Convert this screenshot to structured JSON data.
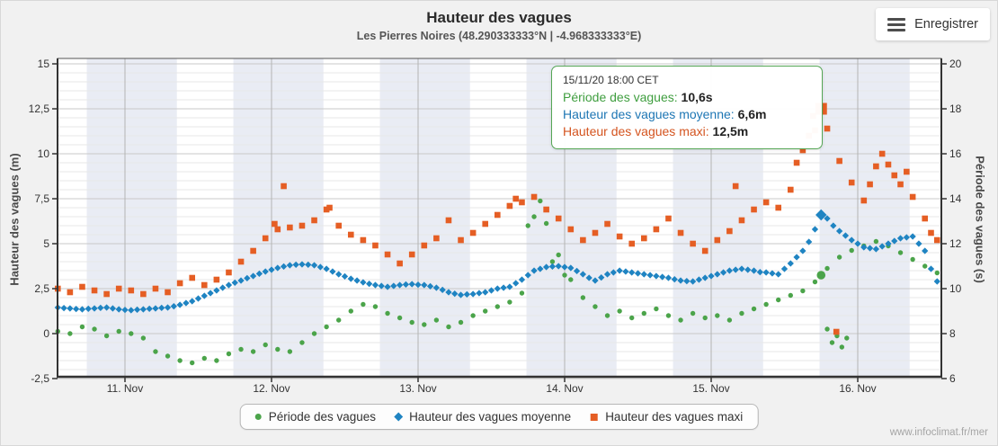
{
  "header": {
    "title": "Hauteur des vagues",
    "subtitle": "Les Pierres Noires (48.290333333°N | -4.968333333°E)",
    "export_button_label": "Enregistrer"
  },
  "watermark": "www.infoclimat.fr/mer",
  "tooltip": {
    "header": "15/11/20 18:00 CET",
    "rows": [
      {
        "label": "Période des vagues:",
        "value": "10,6s",
        "color": "#3f9e3f"
      },
      {
        "label": "Hauteur des vagues moyenne:",
        "value": "6,6m",
        "color": "#1d76b4"
      },
      {
        "label": "Hauteur des vagues maxi:",
        "value": "12,5m",
        "color": "#d4541f"
      }
    ]
  },
  "chart_data": {
    "type": "scatter",
    "title": "Hauteur des vagues",
    "x_unit": "hours since 2020-11-10 00:00 CET",
    "xlim": [
      13,
      158
    ],
    "x_ticks": [
      {
        "t": 24,
        "label": "11. Nov"
      },
      {
        "t": 48,
        "label": "12. Nov"
      },
      {
        "t": 72,
        "label": "13. Nov"
      },
      {
        "t": 96,
        "label": "14. Nov"
      },
      {
        "t": 120,
        "label": "15. Nov"
      },
      {
        "t": 144,
        "label": "16. Nov"
      }
    ],
    "left_axis": {
      "title": "Hauteur des vagues (m)",
      "lim": [
        -2.5,
        15
      ],
      "ticks": [
        {
          "v": 15,
          "label": "15"
        },
        {
          "v": 12.5,
          "label": "12,5"
        },
        {
          "v": 10,
          "label": "10"
        },
        {
          "v": 7.5,
          "label": "7,5"
        },
        {
          "v": 5,
          "label": "5"
        },
        {
          "v": 2.5,
          "label": "2,5"
        },
        {
          "v": 0,
          "label": "0"
        },
        {
          "v": -2.5,
          "label": "-2,5"
        }
      ],
      "minor_step": 0.5
    },
    "right_axis": {
      "title": "Période des vagues (s)",
      "lim": [
        6,
        20
      ],
      "ticks": [
        {
          "s": 20,
          "label": "20"
        },
        {
          "s": 18,
          "label": "18"
        },
        {
          "s": 16,
          "label": "16"
        },
        {
          "s": 14,
          "label": "14"
        },
        {
          "s": 12,
          "label": "12"
        },
        {
          "s": 10,
          "label": "10"
        },
        {
          "s": 8,
          "label": "8"
        },
        {
          "s": 6,
          "label": "6"
        }
      ]
    },
    "night_bands_t": [
      [
        17.75,
        32.5
      ],
      [
        41.75,
        56.5
      ],
      [
        65.75,
        80.5
      ],
      [
        89.75,
        104.5
      ],
      [
        113.75,
        128.5
      ],
      [
        137.75,
        152.5
      ]
    ],
    "band_color": "#e9ecf4",
    "series": [
      {
        "name": "Période des vagues",
        "axis": "right",
        "unit": "s",
        "marker": "circle",
        "color": "#4ba44a",
        "t0": 13,
        "dt": 2,
        "values": [
          8.1,
          8.0,
          8.3,
          8.2,
          7.9,
          8.1,
          8.0,
          7.8,
          7.2,
          7.0,
          6.8,
          6.7,
          6.9,
          6.8,
          7.1,
          7.3,
          7.2,
          7.5,
          7.3,
          7.2,
          7.6,
          8.0,
          8.3,
          8.6,
          9.0,
          9.3,
          9.2,
          8.9,
          8.7,
          8.5,
          8.4,
          8.6,
          8.3,
          8.5,
          8.8,
          9.0,
          9.2,
          9.4,
          9.8,
          13.2,
          12.9,
          11.5,
          10.4,
          9.6,
          9.2,
          8.8,
          9.0,
          8.7,
          8.9,
          9.1,
          8.8,
          8.6,
          8.9,
          8.7,
          8.8,
          8.6,
          8.9,
          9.1,
          9.3,
          9.5,
          9.7,
          9.9,
          10.3,
          10.9,
          11.4,
          11.7,
          11.9,
          12.1,
          11.9,
          11.6,
          11.3,
          11.0,
          10.7
        ],
        "extra_points": [
          [
            90,
            12.8
          ],
          [
            92,
            13.9
          ],
          [
            94,
            11.2
          ],
          [
            96,
            10.6
          ],
          [
            139,
            8.2
          ],
          [
            139.8,
            7.6
          ],
          [
            140.6,
            7.9
          ],
          [
            141.4,
            7.4
          ],
          [
            142.2,
            7.8
          ]
        ],
        "hover_point": [
          138,
          10.6
        ]
      },
      {
        "name": "Hauteur des vagues moyenne",
        "axis": "left",
        "unit": "m",
        "marker": "diamond",
        "color": "#1f84c2",
        "t0": 13,
        "dt": 1,
        "values": [
          1.45,
          1.42,
          1.4,
          1.37,
          1.35,
          1.38,
          1.4,
          1.43,
          1.45,
          1.4,
          1.35,
          1.32,
          1.3,
          1.33,
          1.35,
          1.38,
          1.4,
          1.43,
          1.45,
          1.52,
          1.6,
          1.7,
          1.8,
          1.95,
          2.1,
          2.25,
          2.4,
          2.55,
          2.7,
          2.83,
          2.95,
          3.08,
          3.2,
          3.33,
          3.45,
          3.55,
          3.65,
          3.73,
          3.8,
          3.83,
          3.85,
          3.83,
          3.8,
          3.7,
          3.6,
          3.45,
          3.3,
          3.18,
          3.05,
          2.95,
          2.85,
          2.77,
          2.7,
          2.65,
          2.6,
          2.65,
          2.7,
          2.73,
          2.75,
          2.72,
          2.7,
          2.63,
          2.55,
          2.43,
          2.3,
          2.22,
          2.15,
          2.18,
          2.2,
          2.25,
          2.3,
          2.4,
          2.5,
          2.55,
          2.6,
          2.8,
          3.0,
          3.25,
          3.5,
          3.6,
          3.7,
          3.73,
          3.75,
          3.7,
          3.65,
          3.48,
          3.3,
          3.1,
          2.95,
          3.12,
          3.3,
          3.4,
          3.5,
          3.45,
          3.4,
          3.35,
          3.3,
          3.25,
          3.2,
          3.15,
          3.1,
          3.02,
          2.95,
          2.92,
          2.9,
          3.0,
          3.1,
          3.2,
          3.3,
          3.4,
          3.5,
          3.55,
          3.6,
          3.55,
          3.5,
          3.42,
          3.4,
          3.35,
          3.3,
          3.6,
          3.9,
          4.25,
          4.6,
          5.1,
          5.8,
          6.6,
          6.4,
          6.0,
          5.7,
          5.45,
          5.2,
          5.0,
          4.8,
          4.75,
          4.7,
          4.85,
          5.0,
          5.15,
          5.3,
          5.35,
          5.4,
          5.0,
          4.6,
          3.6,
          2.9
        ],
        "extra_points": [],
        "hover_point": [
          138,
          6.6
        ]
      },
      {
        "name": "Hauteur des vagues maxi",
        "axis": "left",
        "unit": "m",
        "marker": "square",
        "color": "#e55e24",
        "t0": 13,
        "dt": 2,
        "values": [
          2.5,
          2.3,
          2.6,
          2.4,
          2.2,
          2.5,
          2.4,
          2.2,
          2.5,
          2.3,
          2.8,
          3.1,
          2.7,
          3.0,
          3.4,
          4.0,
          4.6,
          5.3,
          5.8,
          5.9,
          6.0,
          6.3,
          6.9,
          6.0,
          5.5,
          5.2,
          4.9,
          4.4,
          3.9,
          4.4,
          4.9,
          5.3,
          6.3,
          5.2,
          5.6,
          6.1,
          6.6,
          7.1,
          7.3,
          7.6,
          6.9,
          6.4,
          5.8,
          5.2,
          5.6,
          6.1,
          5.4,
          5.0,
          5.3,
          5.8,
          6.4,
          5.6,
          5.0,
          4.6,
          5.2,
          5.7,
          6.3,
          6.9,
          7.3,
          7.0,
          8.0,
          10.2,
          11.3,
          11.4,
          9.6,
          8.4,
          7.4,
          9.3,
          9.4,
          8.3,
          7.6,
          6.4,
          5.2
        ],
        "extra_points": [
          [
            48.5,
            6.1
          ],
          [
            50,
            8.2
          ],
          [
            57.5,
            7.0
          ],
          [
            88,
            7.5
          ],
          [
            124,
            8.2
          ],
          [
            134,
            9.5
          ],
          [
            136,
            11.0
          ],
          [
            136.7,
            12.1
          ],
          [
            140.5,
            0.1
          ],
          [
            146,
            8.3
          ],
          [
            148,
            10.0
          ],
          [
            150,
            8.8
          ],
          [
            152,
            9.0
          ],
          [
            156,
            5.6
          ]
        ],
        "hover_point": [
          138,
          12.5
        ]
      }
    ],
    "legend_position": "bottom-center",
    "grid": true
  }
}
